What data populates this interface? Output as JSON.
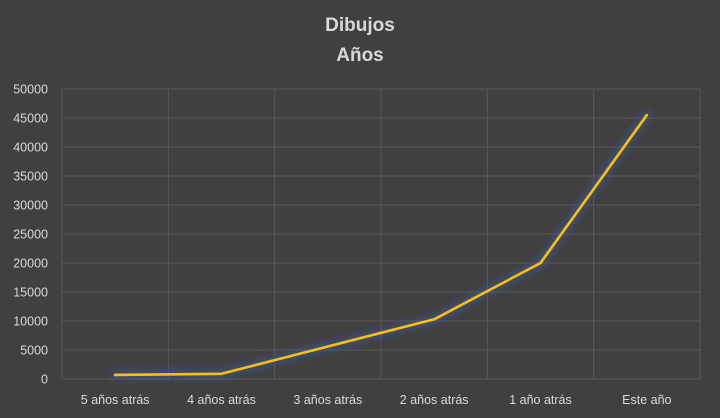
{
  "chart_data": {
    "type": "line",
    "title": "Dibujos",
    "subtitle": "Años",
    "categories": [
      "5 años atrás",
      "4 años atrás",
      "3 años atrás",
      "2 años atrás",
      "1 año atrás",
      "Este año"
    ],
    "series": [
      {
        "values": [
          700,
          900,
          5600,
          10300,
          20000,
          45500
        ],
        "color": "#ffc000"
      }
    ],
    "ylim": [
      0,
      50000
    ],
    "yticks": [
      0,
      5000,
      10000,
      15000,
      20000,
      25000,
      30000,
      35000,
      40000,
      45000,
      50000
    ],
    "grid": true,
    "legend": "none",
    "colors": {
      "background": "#404040",
      "grid": "#595959",
      "text": "#d9d9d9",
      "line": "#ffc000"
    }
  }
}
